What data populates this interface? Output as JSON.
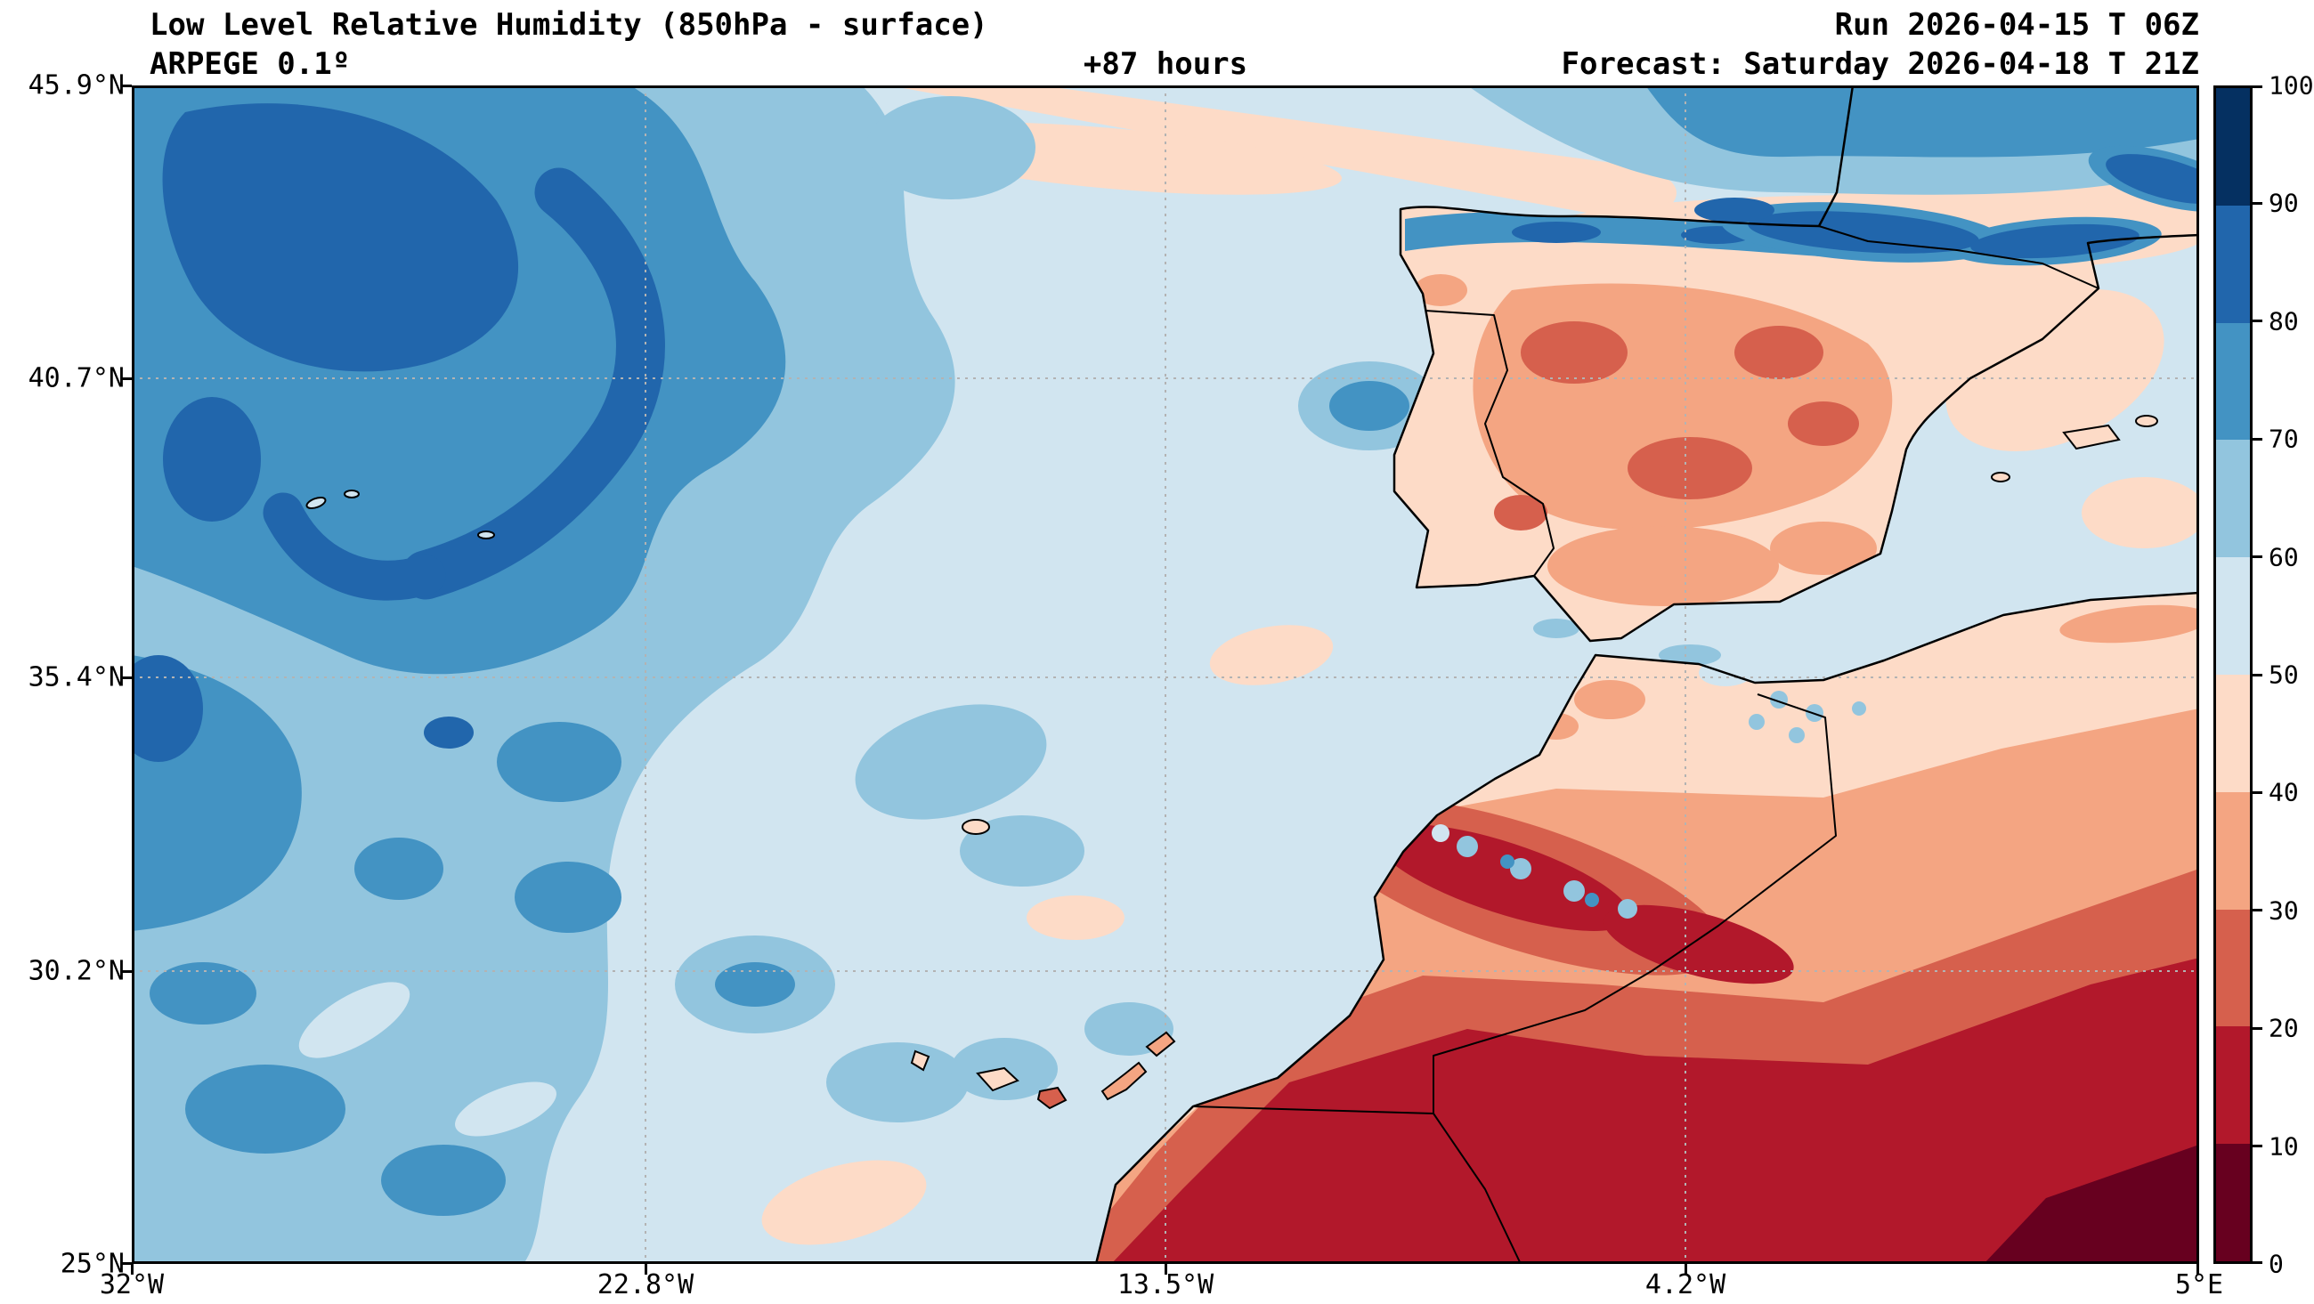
{
  "header": {
    "title": "Low Level Relative Humidity (850hPa - surface)",
    "model_line": "ARPEGE 0.1º",
    "lead_time": "+87 hours",
    "run_line": "Run 2026-04-15 T 06Z",
    "forecast_line": "Forecast: Saturday 2026-04-18 T 21Z"
  },
  "axes": {
    "y_tick_labels": [
      "45.9°N",
      "40.7°N",
      "35.4°N",
      "30.2°N",
      "25°N"
    ],
    "x_tick_labels": [
      "32°W",
      "22.8°W",
      "13.5°W",
      "4.2°W",
      "5°E"
    ]
  },
  "colorbar": {
    "min": 0,
    "max": 100,
    "tick_labels": [
      "0",
      "10",
      "20",
      "30",
      "40",
      "50",
      "60",
      "70",
      "80",
      "90",
      "100"
    ],
    "segment_colors_bottom_to_top": [
      "#67001f",
      "#b2182b",
      "#d6604d",
      "#f4a582",
      "#fddbc7",
      "#d1e5f0",
      "#92c5de",
      "#4393c3",
      "#2166ac",
      "#053061"
    ]
  },
  "chart_data": {
    "type": "heatmap",
    "subtype": "filled-contour weather map",
    "title": "Low Level Relative Humidity (850hPa - surface)",
    "model": "ARPEGE 0.1º",
    "run": "2026-04-15 T 06Z",
    "forecast_valid": "Saturday 2026-04-18 T 21Z",
    "lead_time_hours": 87,
    "variable": "relative humidity (%)",
    "x_axis": {
      "ticks": [
        "32°W",
        "22.8°W",
        "13.5°W",
        "4.2°W",
        "5°E"
      ],
      "range_deg_east": [
        -32,
        5
      ]
    },
    "y_axis": {
      "ticks": [
        "25°N",
        "30.2°N",
        "35.4°N",
        "40.7°N",
        "45.9°N"
      ],
      "range_deg_north": [
        25,
        45.9
      ]
    },
    "colorbar": {
      "range": [
        0,
        100
      ],
      "ticks": [
        0,
        10,
        20,
        30,
        40,
        50,
        60,
        70,
        80,
        90,
        100
      ],
      "palette": "red-white-blue diverging (dry red, moist blue)",
      "colors_bottom_to_top": [
        "#67001f",
        "#b2182b",
        "#d6604d",
        "#f4a582",
        "#fddbc7",
        "#d1e5f0",
        "#92c5de",
        "#4393c3",
        "#2166ac",
        "#053061"
      ]
    },
    "grid": "dashed gray lines at interior tick positions",
    "regions": [
      {
        "area": "North Atlantic cyclonic swirl west of ~20°W, 28-46°N",
        "rh_percent": "70-100"
      },
      {
        "area": "Central Atlantic background",
        "rh_percent": "50-60"
      },
      {
        "area": "Band across Bay of Biscay / Cantabrian coast / Pyrenees",
        "rh_percent": "80-100"
      },
      {
        "area": "Dry filament across top-centre of domain",
        "rh_percent": "40-50"
      },
      {
        "area": "Iberian Peninsula interior",
        "rh_percent": "20-40"
      },
      {
        "area": "Atlas mountains, Morocco",
        "rh_percent": "10-30 with local moist pockets 60-80"
      },
      {
        "area": "Sahara sector: southern Morocco, Western Sahara, Algeria",
        "rh_percent": "0-20"
      },
      {
        "area": "Canary Islands and nearby waters",
        "rh_percent": "50-70"
      }
    ]
  }
}
